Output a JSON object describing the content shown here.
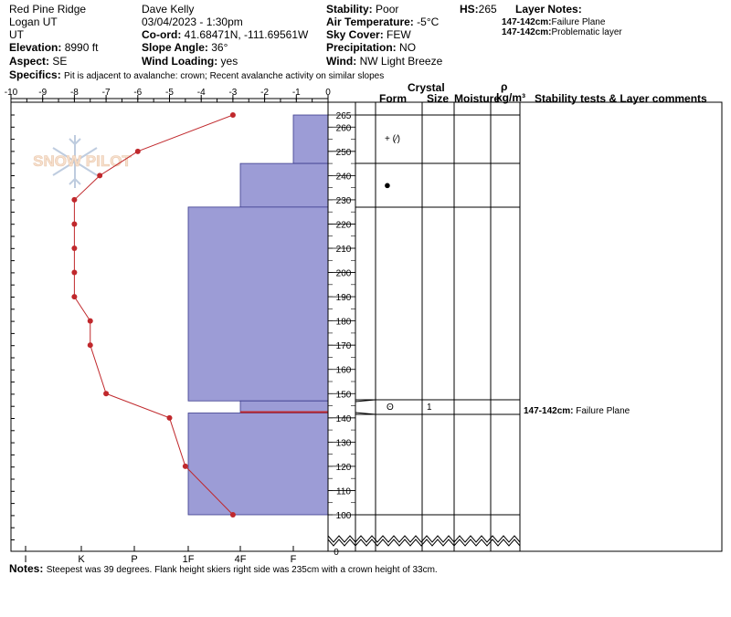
{
  "header": {
    "location": "Red Pine Ridge",
    "region": "Logan UT",
    "state": "UT",
    "elevation_label": "Elevation:",
    "elevation": "8990 ft",
    "aspect_label": "Aspect:",
    "aspect": "SE",
    "observer": "Dave Kelly",
    "datetime": "03/04/2023 - 1:30pm",
    "coord_label": "Co-ord:",
    "coord": "41.68471N, -111.69561W",
    "slope_label": "Slope Angle:",
    "slope": "36°",
    "wind_loading_label": "Wind Loading:",
    "wind_loading": "yes",
    "stability_label": "Stability:",
    "stability": "Poor",
    "air_temp_label": "Air Temperature:",
    "air_temp": "-5°C",
    "sky_label": "Sky Cover:",
    "sky": "FEW",
    "precip_label": "Precipitation:",
    "precip": "NO",
    "wind_label": "Wind:",
    "wind": "NW Light Breeze",
    "hs_label": "HS:",
    "hs": "265",
    "layer_notes_label": "Layer Notes:",
    "layer_notes": [
      {
        "range": "147-142cm:",
        "text": "Failure Plane"
      },
      {
        "range": "147-142cm:",
        "text": "Problematic layer"
      }
    ],
    "specifics_label": "Specifics:",
    "specifics": "Pit is adjacent to avalanche: crown; Recent avalanche activity on similar slopes"
  },
  "logo_text": "SNOW PILOT",
  "table_headers": {
    "crystal": "Crystal",
    "form": "Form",
    "size": "Size",
    "moisture": "Moisture",
    "rho": "ρ",
    "density_unit": "kg/m³",
    "stability_comments": "Stability tests & Layer comments"
  },
  "layer_rows": [
    {
      "form": "+ (∕)",
      "size": "",
      "comment": ""
    },
    {
      "form": "",
      "size": "",
      "comment": ""
    },
    {
      "form": "",
      "size": "",
      "comment": ""
    },
    {
      "form": "ʘ",
      "size": "1",
      "comment_range": "147-142cm:",
      "comment": "Failure Plane"
    },
    {
      "form": "",
      "size": "",
      "comment": ""
    }
  ],
  "notes_label": "Notes:",
  "notes": "Steepest was 39 degrees. Flank height skiers right side was 235cm with a crown height of 33cm.",
  "chart_data": {
    "type": "snow-profile",
    "temperature_axis": {
      "ticks": [
        -10,
        -9,
        -8,
        -7,
        -6,
        -5,
        -4,
        -3,
        -2,
        -1,
        0
      ],
      "range": [
        -10,
        0
      ]
    },
    "height_axis": {
      "ticks": [
        0,
        100,
        110,
        120,
        130,
        140,
        150,
        160,
        170,
        180,
        190,
        200,
        210,
        220,
        230,
        240,
        250,
        260,
        265
      ],
      "range": [
        0,
        265
      ]
    },
    "hardness_axis": {
      "ticks": [
        "I",
        "K",
        "P",
        "1F",
        "4F",
        "F"
      ]
    },
    "temperature_profile": [
      {
        "height": 265,
        "temp": -3
      },
      {
        "height": 250,
        "temp": -6
      },
      {
        "height": 240,
        "temp": -7.2
      },
      {
        "height": 230,
        "temp": -8
      },
      {
        "height": 220,
        "temp": -8
      },
      {
        "height": 210,
        "temp": -8
      },
      {
        "height": 200,
        "temp": -8
      },
      {
        "height": 190,
        "temp": -8
      },
      {
        "height": 180,
        "temp": -7.5
      },
      {
        "height": 170,
        "temp": -7.5
      },
      {
        "height": 150,
        "temp": -7
      },
      {
        "height": 140,
        "temp": -5
      },
      {
        "height": 120,
        "temp": -4.5
      },
      {
        "height": 100,
        "temp": -3
      }
    ],
    "hardness_layers": [
      {
        "top": 265,
        "bottom": 245,
        "hardness": "F"
      },
      {
        "top": 245,
        "bottom": 227,
        "hardness": "4F"
      },
      {
        "top": 227,
        "bottom": 147,
        "hardness": "1F"
      },
      {
        "top": 147,
        "bottom": 142,
        "hardness": "4F"
      },
      {
        "top": 142,
        "bottom": 100,
        "hardness": "1F"
      }
    ],
    "failure_plane_height": 142,
    "colors": {
      "layer": "#9c9cd6",
      "layer_stroke": "#3a3a8c",
      "temp": "#c0282c",
      "failure": "#c0282c"
    }
  }
}
